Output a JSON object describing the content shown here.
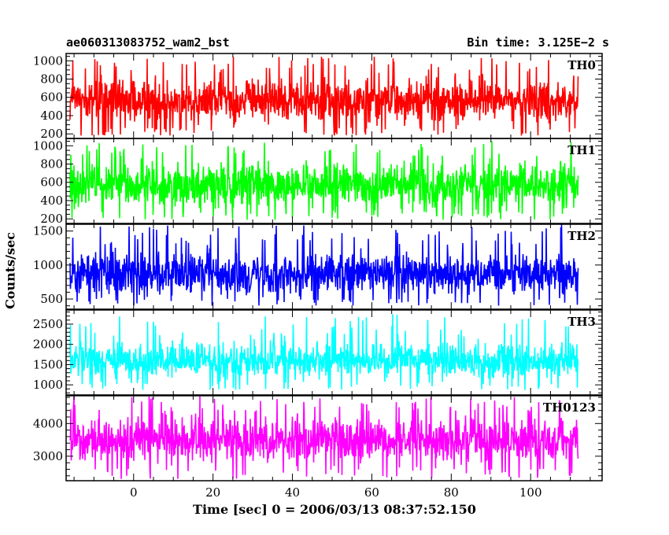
{
  "header": {
    "left": "ae060313083752_wam2_bst",
    "right": "Bin time: 3.125E−2 s"
  },
  "axes": {
    "xlabel": "Time [sec] 0 = 2006/03/13 08:37:52.150",
    "ylabel": "Counts/sec"
  },
  "chart_data": {
    "type": "line",
    "layout": "stacked-panels",
    "x_range": [
      -16,
      112
    ],
    "xlim": [
      -17,
      118
    ],
    "x_ticks": [
      0,
      20,
      40,
      60,
      80,
      100
    ],
    "x_tick_labels": [
      "0",
      "20",
      "40",
      "60",
      "80",
      "100"
    ],
    "x_minor_step": 5,
    "panels": [
      {
        "name": "TH0",
        "color": "#ff0000",
        "ylim": [
          150,
          1080
        ],
        "y_ticks": [
          200,
          400,
          600,
          800,
          1000
        ],
        "y_tick_labels": [
          "200",
          "400",
          "600",
          "800",
          "1000"
        ],
        "y_minor_step": 50,
        "mean": 570,
        "typical_range": [
          280,
          880
        ],
        "spike_range": [
          180,
          1050
        ]
      },
      {
        "name": "TH1",
        "color": "#00ff00",
        "ylim": [
          150,
          1080
        ],
        "y_ticks": [
          200,
          400,
          600,
          800,
          1000
        ],
        "y_tick_labels": [
          "200",
          "400",
          "600",
          "800",
          "1000"
        ],
        "y_minor_step": 50,
        "mean": 570,
        "typical_range": [
          290,
          870
        ],
        "spike_range": [
          190,
          1050
        ]
      },
      {
        "name": "TH2",
        "color": "#0000ff",
        "ylim": [
          350,
          1600
        ],
        "y_ticks": [
          500,
          1000,
          1500
        ],
        "y_tick_labels": [
          "500",
          "1000",
          "1500"
        ],
        "y_minor_step": 100,
        "mean": 880,
        "typical_range": [
          520,
          1260
        ],
        "spike_range": [
          400,
          1600
        ]
      },
      {
        "name": "TH3",
        "color": "#00ffff",
        "ylim": [
          750,
          2850
        ],
        "y_ticks": [
          1000,
          1500,
          2000,
          2500
        ],
        "y_tick_labels": [
          "1000",
          "1500",
          "2000",
          "2500"
        ],
        "y_minor_step": 100,
        "mean": 1600,
        "typical_range": [
          1080,
          2150
        ],
        "spike_range": [
          870,
          2750
        ]
      },
      {
        "name": "TH0123",
        "color": "#ff00ff",
        "ylim": [
          2250,
          4850
        ],
        "y_ticks": [
          3000,
          4000
        ],
        "y_tick_labels": [
          "3000",
          "4000"
        ],
        "y_minor_step": 200,
        "mean": 3500,
        "typical_range": [
          2650,
          4300
        ],
        "spike_range": [
          2300,
          4850
        ]
      }
    ]
  }
}
